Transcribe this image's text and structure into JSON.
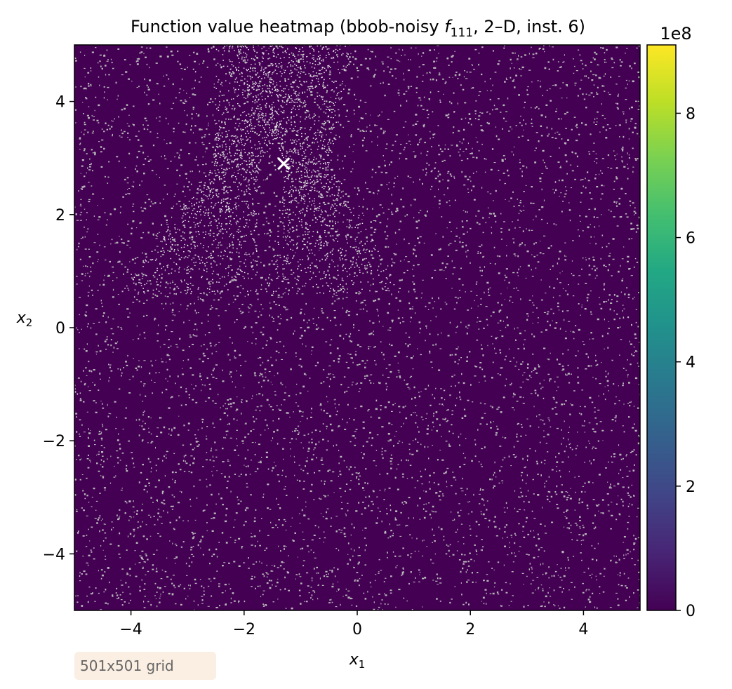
{
  "chart_data": {
    "type": "heatmap",
    "title_prefix": "Function value heatmap (bbob-noisy ",
    "title_f": "f",
    "title_f_sub": "111",
    "title_suffix": ", 2–D, inst. 6)",
    "xlabel": "x",
    "xlabel_sub": "1",
    "ylabel": "x",
    "ylabel_sub": "2",
    "xlim": [
      -5,
      5
    ],
    "ylim": [
      -5,
      5
    ],
    "x_ticks": [
      -4,
      -2,
      0,
      2,
      4
    ],
    "y_ticks": [
      -4,
      -2,
      0,
      2,
      4
    ],
    "x_tick_labels": [
      "−4",
      "−2",
      "0",
      "2",
      "4"
    ],
    "y_tick_labels": [
      "−4",
      "−2",
      "0",
      "2",
      "4"
    ],
    "colormap": "viridis",
    "colorbar": {
      "range": [
        0,
        9.1
      ],
      "ticks": [
        0,
        2,
        4,
        6,
        8
      ],
      "tick_labels": [
        "0",
        "2",
        "4",
        "6",
        "8"
      ],
      "exponent_label": "1e8"
    },
    "optimum_marker": {
      "x": -1.3,
      "y": 2.9,
      "symbol": "x",
      "color": "#ffffff"
    },
    "grid": false,
    "background_color": "#440154",
    "noise_speckle_color": "#b8b8b8"
  },
  "annotation": {
    "grid_size_label": "501x501 grid"
  }
}
